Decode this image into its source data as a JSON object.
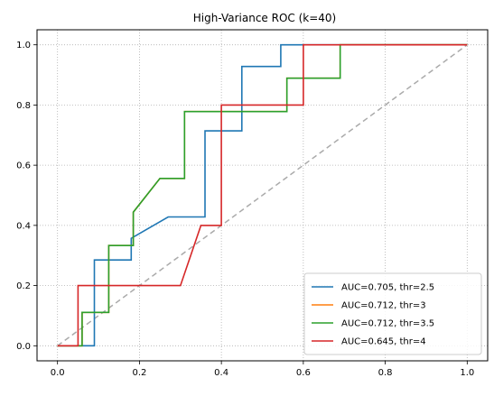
{
  "chart_data": {
    "type": "line",
    "title": "High-Variance ROC (k=40)",
    "xlabel": "",
    "ylabel": "",
    "xlim": [
      -0.05,
      1.05
    ],
    "ylim": [
      -0.05,
      1.05
    ],
    "xticks": [
      "0.0",
      "0.2",
      "0.4",
      "0.6",
      "0.8",
      "1.0"
    ],
    "yticks": [
      "0.0",
      "0.2",
      "0.4",
      "0.6",
      "0.8",
      "1.0"
    ],
    "grid": true,
    "legend_position": "lower-right",
    "diagonal": {
      "x": [
        0,
        1
      ],
      "y": [
        0,
        1
      ],
      "color": "#aaaaaa",
      "style": "dashed"
    },
    "series": [
      {
        "name": "AUC=0.705, thr=2.5",
        "color": "#1f77b4",
        "x": [
          0,
          0.09,
          0.09,
          0.09,
          0.18,
          0.18,
          0.27,
          0.36,
          0.36,
          0.45,
          0.45,
          0.545,
          0.545,
          1.0
        ],
        "y": [
          0,
          0,
          0,
          0.285,
          0.285,
          0.357,
          0.428,
          0.428,
          0.714,
          0.714,
          0.928,
          0.928,
          1.0,
          1.0
        ]
      },
      {
        "name": "AUC=0.712, thr=3",
        "color": "#ff7f0e",
        "x": [
          0,
          0.06,
          0.06,
          0.125,
          0.125,
          0.185,
          0.185,
          0.25,
          0.31,
          0.31,
          0.56,
          0.56,
          0.69,
          0.69,
          1.0
        ],
        "y": [
          0,
          0,
          0.111,
          0.111,
          0.333,
          0.333,
          0.444,
          0.556,
          0.556,
          0.778,
          0.778,
          0.889,
          0.889,
          1.0,
          1.0
        ]
      },
      {
        "name": "AUC=0.712, thr=3.5",
        "color": "#2ca02c",
        "x": [
          0,
          0.06,
          0.06,
          0.125,
          0.125,
          0.185,
          0.185,
          0.25,
          0.31,
          0.31,
          0.56,
          0.56,
          0.69,
          0.69,
          1.0
        ],
        "y": [
          0,
          0,
          0.111,
          0.111,
          0.333,
          0.333,
          0.444,
          0.556,
          0.556,
          0.778,
          0.778,
          0.889,
          0.889,
          1.0,
          1.0
        ]
      },
      {
        "name": "AUC=0.645, thr=4",
        "color": "#d62728",
        "x": [
          0,
          0.05,
          0.05,
          0.3,
          0.35,
          0.4,
          0.4,
          0.6,
          0.6,
          1.0
        ],
        "y": [
          0,
          0,
          0.2,
          0.2,
          0.4,
          0.4,
          0.8,
          0.8,
          1.0,
          1.0
        ]
      }
    ]
  }
}
